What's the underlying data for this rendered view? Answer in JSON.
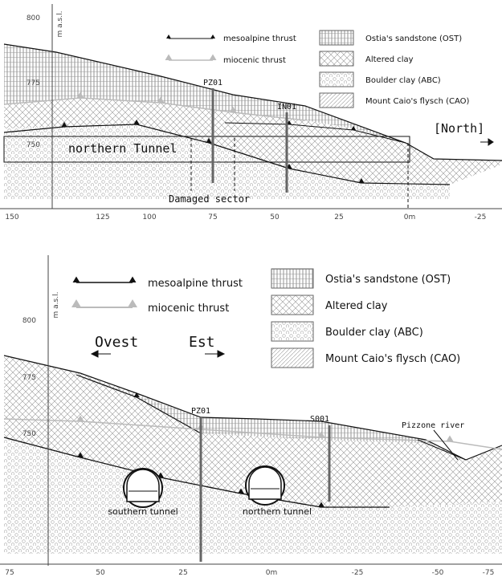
{
  "legend": {
    "mesoalpine": "mesoalpine thrust",
    "miocenic": "miocenic thrust",
    "ost": "Ostia's sandstone (OST)",
    "altered": "Altered clay",
    "abc": "Boulder clay (ABC)",
    "cao": "Mount Caio's flysch (CAO)"
  },
  "top": {
    "y_unit": "m a.s.l.",
    "y_labels": [
      "800",
      "775",
      "750"
    ],
    "x_labels": [
      "150",
      "125",
      "100",
      "75",
      "50",
      "25",
      "0m",
      "-25"
    ],
    "labels": {
      "pz01": "PZ01",
      "in01": "IN01",
      "north": "[North]",
      "tunnel": "northern Tunnel",
      "damaged": "Damaged sector"
    }
  },
  "bottom": {
    "y_unit": "m a.s.l.",
    "y_labels": [
      "800",
      "775",
      "750"
    ],
    "x_labels": [
      "75",
      "50",
      "25",
      "0m",
      "-25",
      "-50",
      "-75"
    ],
    "labels": {
      "ovest": "Ovest",
      "est": "Est",
      "pz01": "PZ01",
      "s001": "S001",
      "river": "Pizzone river",
      "southern": "southern tunnel",
      "northern": "northern tunnel"
    }
  }
}
